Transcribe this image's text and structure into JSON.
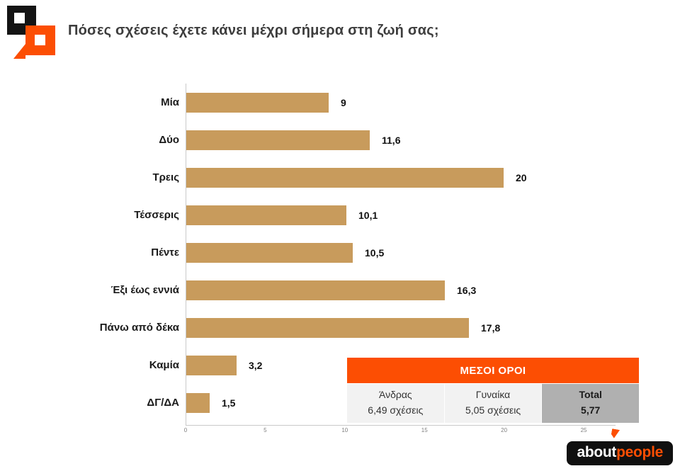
{
  "header": {
    "title": "Πόσες σχέσεις έχετε κάνει μέχρι σήμερα στη ζωή σας;"
  },
  "chart_data": {
    "type": "bar",
    "orientation": "horizontal",
    "title": "Πόσες σχέσεις έχετε κάνει μέχρι σήμερα στη ζωή σας;",
    "categories": [
      "Μία",
      "Δύο",
      "Τρεις",
      "Τέσσερις",
      "Πέντε",
      "Έξι έως εννιά",
      "Πάνω από δέκα",
      "Καμία",
      "ΔΓ/ΔΑ"
    ],
    "values": [
      9,
      11.6,
      20,
      10.1,
      10.5,
      16.3,
      17.8,
      3.2,
      1.5
    ],
    "value_labels": [
      "9",
      "11,6",
      "20",
      "10,1",
      "10,5",
      "16,3",
      "17,8",
      "3,2",
      "1,5"
    ],
    "xlim": [
      0,
      27
    ],
    "x_ticks": [
      0,
      5,
      10,
      15,
      20,
      25
    ],
    "grid": false,
    "legend": "none",
    "bar_color": "#C89B5C"
  },
  "averages_table": {
    "title": "ΜΕΣΟΙ ΟΡΟΙ",
    "columns": [
      {
        "label": "Άνδρας",
        "value": "6,49 σχέσεις",
        "highlight": false
      },
      {
        "label": "Γυναίκα",
        "value": "5,05 σχέσεις",
        "highlight": false
      },
      {
        "label": "Total",
        "value": "5,77",
        "highlight": true
      }
    ]
  },
  "brand": {
    "part1": "about",
    "part2": "people"
  },
  "colors": {
    "accent": "#FC4E03",
    "bar": "#C89B5C",
    "table_body_bg": "#F2F2F2",
    "table_total_bg": "#B0B0B0"
  }
}
